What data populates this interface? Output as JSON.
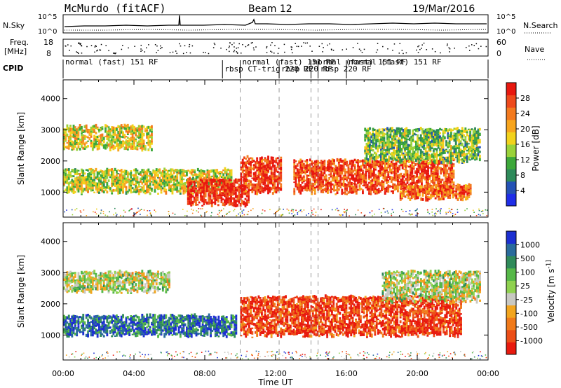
{
  "header": {
    "station": "McMurdo (fitACF)",
    "beam": "Beam 12",
    "date": "19/Mar/2016"
  },
  "summary_panels": {
    "nsky_label": "N.Sky",
    "nsearch_label": "N.Search",
    "noise_ticks_left": [
      "10^5",
      "10^0"
    ],
    "noise_ticks_right": [
      "10^5",
      "10^0"
    ],
    "freq_label": "Freq.",
    "freq_unit": "[MHz]",
    "freq_ticks": [
      "18",
      "8"
    ],
    "nave_label": "Nave",
    "nave_ticks": [
      "60",
      "0"
    ],
    "cpid_label": "CPID",
    "cpid_segments": [
      {
        "label": "normal (fast) 151 RF",
        "start_hour": 0.0
      },
      {
        "label": "rbsp CT-trig 220 RF",
        "start_hour": 9.0
      },
      {
        "label": "normal (fast) 151 RF",
        "start_hour": 10.0
      },
      {
        "label": "rbsp 220 RF",
        "start_hour": 12.2
      },
      {
        "label": "normal (fast) 151 RF",
        "start_hour": 14.0
      },
      {
        "label": "rbsp 220 RF",
        "start_hour": 14.4
      },
      {
        "label": "normal (fast) 151 RF",
        "start_hour": 16.0
      }
    ]
  },
  "chart_data": [
    {
      "type": "heatmap",
      "name": "power-panel",
      "xlabel": "",
      "ylabel": "Slant Range [km]",
      "xlim": [
        0,
        24
      ],
      "ylim": [
        200,
        4600
      ],
      "yticks": [
        1000,
        2000,
        3000,
        4000
      ],
      "xticks": [
        "00:00",
        "04:00",
        "08:00",
        "12:00",
        "16:00",
        "20:00",
        "00:00"
      ],
      "colorbar": {
        "label": "Power [dB]",
        "ticks": [
          "4",
          "8",
          "12",
          "16",
          "20",
          "24",
          "28"
        ],
        "colors": [
          "#1f2ee8",
          "#2452b5",
          "#2e8a5a",
          "#3da83a",
          "#9ad23a",
          "#f2d21c",
          "#f7a51e",
          "#f37a1f",
          "#ee4a1c",
          "#e8180f"
        ]
      },
      "echo_bands": [
        {
          "t0": 0.0,
          "t1": 5.0,
          "r0": 2300,
          "r1": 3100,
          "level": 0.55
        },
        {
          "t0": 0.0,
          "t1": 9.5,
          "r0": 900,
          "r1": 1700,
          "level": 0.5
        },
        {
          "t0": 7.0,
          "t1": 10.5,
          "r0": 500,
          "r1": 1400,
          "level": 0.95
        },
        {
          "t0": 10.0,
          "t1": 12.3,
          "r0": 900,
          "r1": 2100,
          "level": 0.9
        },
        {
          "t0": 13.0,
          "t1": 22.0,
          "r0": 900,
          "r1": 2000,
          "level": 0.85
        },
        {
          "t0": 17.0,
          "t1": 23.5,
          "r0": 1900,
          "r1": 3000,
          "level": 0.4
        },
        {
          "t0": 19.0,
          "t1": 23.0,
          "r0": 700,
          "r1": 1200,
          "level": 0.8
        }
      ]
    },
    {
      "type": "heatmap",
      "name": "velocity-panel",
      "xlabel": "Time UT",
      "ylabel": "Slant Range [km]",
      "xlim": [
        0,
        24
      ],
      "ylim": [
        200,
        4600
      ],
      "yticks": [
        1000,
        2000,
        3000,
        4000
      ],
      "xticks": [
        "00:00",
        "04:00",
        "08:00",
        "12:00",
        "16:00",
        "20:00",
        "00:00"
      ],
      "colorbar": {
        "label": "Velocity [m s^-1]",
        "ticks": [
          "1000",
          "500",
          "100",
          "25",
          "-25",
          "-100",
          "-500",
          "-1000"
        ],
        "colors": [
          "#1c2fd1",
          "#2a6b9c",
          "#2f8a5a",
          "#56b848",
          "#8fd14f",
          "#c8c8c2",
          "#f2a51e",
          "#f07a1a",
          "#ec4e17",
          "#e81a0e"
        ]
      },
      "echo_bands": [
        {
          "t0": 0.0,
          "t1": 6.0,
          "r0": 2300,
          "r1": 3000,
          "level": 0.5
        },
        {
          "t0": 0.0,
          "t1": 9.8,
          "r0": 900,
          "r1": 1600,
          "level": 0.15
        },
        {
          "t0": 10.0,
          "t1": 22.5,
          "r0": 900,
          "r1": 2200,
          "level": 0.9
        },
        {
          "t0": 18.0,
          "t1": 23.5,
          "r0": 2000,
          "r1": 3000,
          "level": 0.5
        }
      ]
    }
  ]
}
